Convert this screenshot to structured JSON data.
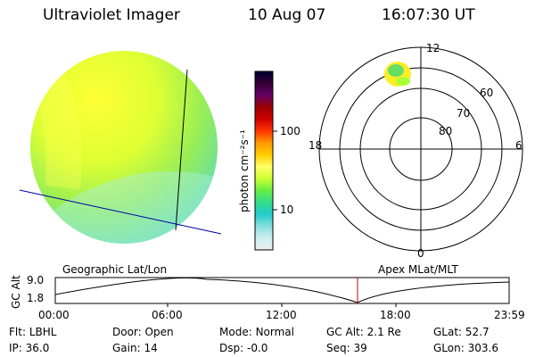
{
  "header": {
    "instrument": "Ultraviolet Imager",
    "date": "10 Aug 07",
    "time": "16:07:30 UT"
  },
  "colorbar": {
    "unit_label": "photon cm⁻²s⁻¹",
    "tick_labels": [
      "100",
      "10"
    ],
    "stops": [
      "#000033",
      "#330033",
      "#660066",
      "#990000",
      "#cc0000",
      "#ff3300",
      "#ff9900",
      "#ffcc00",
      "#ffff66",
      "#ccff33",
      "#66ee44",
      "#33dd88",
      "#22cccc",
      "#88dddd",
      "#ccefef",
      "#eeeeee"
    ]
  },
  "polar": {
    "caption": "Apex MLat/MLT",
    "mlt_labels": {
      "top": "12",
      "bottom": "0",
      "left": "18",
      "right": "6"
    },
    "mlat_labels": [
      "60",
      "70",
      "80"
    ]
  },
  "globe": {
    "caption": "Geographic Lat/Lon"
  },
  "altitude_plot": {
    "ylabel": "GC Alt",
    "y_ticks": [
      "9.0",
      "1.8"
    ],
    "x_ticks": [
      "00:00",
      "06:00",
      "12:00",
      "18:00",
      "23:59"
    ],
    "marker_color": "#cc0000"
  },
  "info": [
    {
      "label": "Flt:",
      "value": "LBHL"
    },
    {
      "label": "IP:",
      "value": "36.0"
    },
    {
      "label": "Door:",
      "value": "Open"
    },
    {
      "label": "Gain:",
      "value": "14"
    },
    {
      "label": "Mode:",
      "value": "Normal"
    },
    {
      "label": "Dsp:",
      "value": "-0.0"
    },
    {
      "label": "GC Alt:",
      "value": "2.1 Re"
    },
    {
      "label": "Seq:",
      "value": "39"
    },
    {
      "label": "GLat:",
      "value": "52.7"
    },
    {
      "label": "GLon:",
      "value": "303.6"
    }
  ]
}
